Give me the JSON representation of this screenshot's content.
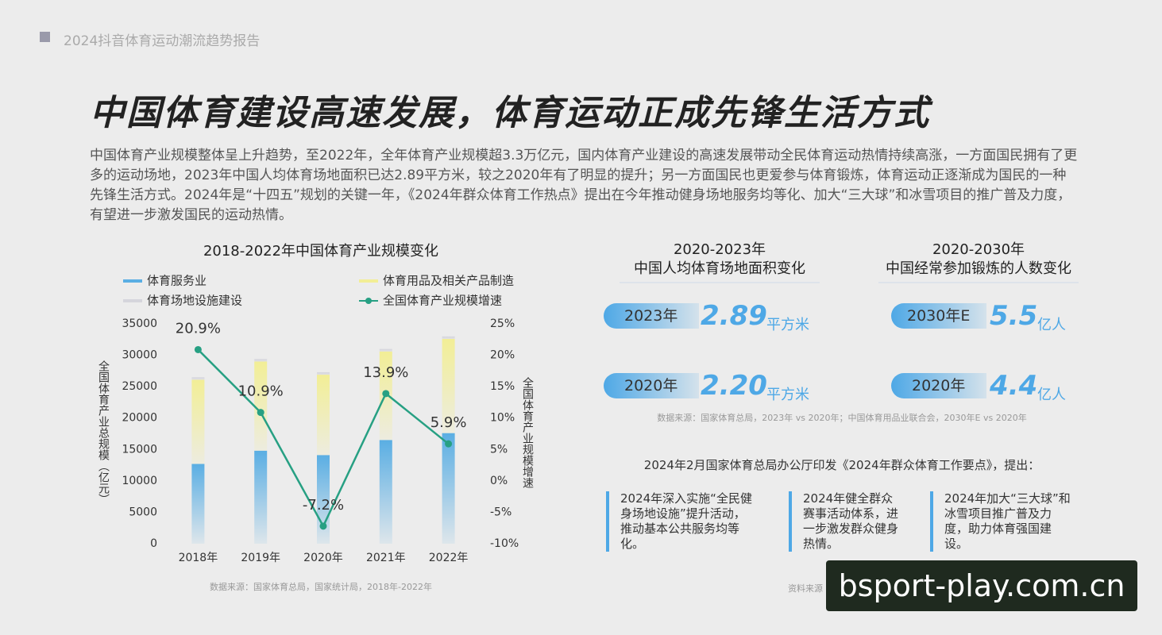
{
  "header": {
    "title": "2024抖音体育运动潮流趋势报告"
  },
  "headline": "中国体育建设高速发展，体育运动正成先锋生活方式",
  "intro": "中国体育产业规模整体呈上升趋势，至2022年，全年体育产业规模超3.3万亿元，国内体育产业建设的高速发展带动全民体育运动热情持续高涨，一方面国民拥有了更多的运动场地，2023年中国人均体育场地面积已达2.89平方米，较之2020年有了明显的提升；另一方面国民也更爱参与体育锻炼，体育运动正逐渐成为国民的一种先锋生活方式。2024年是“十四五”规划的关键一年，《2024年群众体育工作热点》提出在今年推动健身场地服务均等化、加大“三大球”和冰雪项目的推广普及力度，有望进一步激发国民的运动热情。",
  "chart_data": {
    "type": "bar",
    "title": "2018-2022年中国体育产业规模变化",
    "y_label": "全国体育产业总规模（亿元）",
    "y2_label": "全国体育产业规模增速",
    "categories": [
      "2018年",
      "2019年",
      "2020年",
      "2021年",
      "2022年"
    ],
    "series": [
      {
        "name": "体育服务业",
        "color": "#5aaee3",
        "values": [
          12700,
          14800,
          14100,
          16500,
          17600
        ]
      },
      {
        "name": "体育用品及相关产品制造",
        "color": "#f2ee96",
        "values": [
          13400,
          14200,
          12800,
          14100,
          15000
        ]
      },
      {
        "name": "体育场地设施建设",
        "color": "#d5d5dc",
        "values": [
          400,
          400,
          400,
          400,
          400
        ]
      },
      {
        "name": "全国体育产业规模增速",
        "color": "#27a083",
        "axis": "y2",
        "type": "line",
        "values": [
          20.9,
          10.9,
          -7.2,
          13.9,
          5.9
        ],
        "value_labels": [
          "20.9%",
          "10.9%",
          "-7.2%",
          "13.9%",
          "5.9%"
        ]
      }
    ],
    "ylim": [
      0,
      35000
    ],
    "yticks": [
      0,
      5000,
      10000,
      15000,
      20000,
      25000,
      30000,
      35000
    ],
    "y2lim": [
      -10,
      25
    ],
    "y2ticks": [
      {
        "value": -10,
        "label": "-10%"
      },
      {
        "value": -5,
        "label": "-5%"
      },
      {
        "value": 0,
        "label": "0%"
      },
      {
        "value": 5,
        "label": "5%"
      },
      {
        "value": 10,
        "label": "10%"
      },
      {
        "value": 15,
        "label": "15%"
      },
      {
        "value": 20,
        "label": "20%"
      },
      {
        "value": 25,
        "label": "25%"
      }
    ],
    "source": "数据来源：国家体育总局，国家统计局，2018年-2022年"
  },
  "panels": [
    {
      "period": "2020-2023年",
      "subtitle": "中国人均体育场地面积变化",
      "rows": [
        {
          "label": "2023年",
          "value": "2.89",
          "unit": "平方米"
        },
        {
          "label": "2020年",
          "value": "2.20",
          "unit": "平方米"
        }
      ]
    },
    {
      "period": "2020-2030年",
      "subtitle": "中国经常参加锻炼的人数变化",
      "rows": [
        {
          "label": "2030年E",
          "value": "5.5",
          "unit": "亿人"
        },
        {
          "label": "2020年",
          "value": "4.4",
          "unit": "亿人"
        }
      ]
    }
  ],
  "panels_source": "数据来源：国家体育总局，2023年 vs 2020年；中国体育用品业联合会，2030年E vs 2020年",
  "policy": {
    "lead": "2024年2月国家体育总局办公厅印发《2024年群众体育工作要点》，提出：",
    "items": [
      "2024年深入实施“全民健身场地设施”提升活动，推动基本公共服务均等化。",
      "2024年健全群众赛事活动体系，进一步激发群众健身热情。",
      "2024年加大“三大球”和冰雪项目推广普及力度，助力体育强国建设。"
    ]
  },
  "footer_source": "资料来源",
  "watermark": "bsport-play.com.cn"
}
